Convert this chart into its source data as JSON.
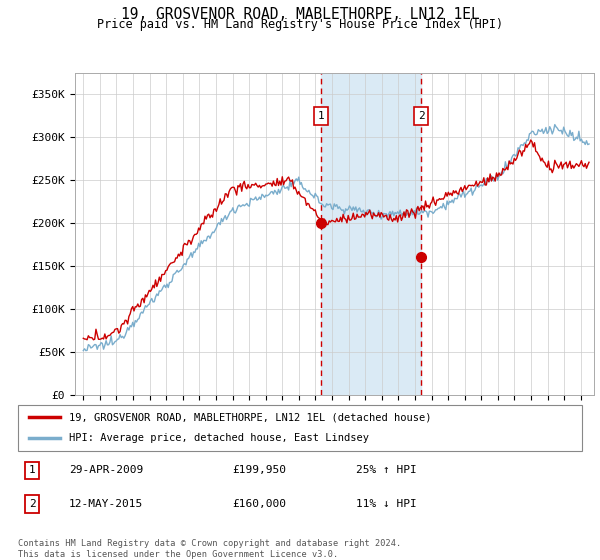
{
  "title": "19, GROSVENOR ROAD, MABLETHORPE, LN12 1EL",
  "subtitle": "Price paid vs. HM Land Registry's House Price Index (HPI)",
  "legend_line1": "19, GROSVENOR ROAD, MABLETHORPE, LN12 1EL (detached house)",
  "legend_line2": "HPI: Average price, detached house, East Lindsey",
  "footer": "Contains HM Land Registry data © Crown copyright and database right 2024.\nThis data is licensed under the Open Government Licence v3.0.",
  "transaction1_date": "29-APR-2009",
  "transaction1_price": "£199,950",
  "transaction1_hpi": "25% ↑ HPI",
  "transaction2_date": "12-MAY-2015",
  "transaction2_price": "£160,000",
  "transaction2_hpi": "11% ↓ HPI",
  "ylim": [
    0,
    375000
  ],
  "yticks": [
    0,
    50000,
    100000,
    150000,
    200000,
    250000,
    300000,
    350000
  ],
  "ytick_labels": [
    "£0",
    "£50K",
    "£100K",
    "£150K",
    "£200K",
    "£250K",
    "£300K",
    "£350K"
  ],
  "red_color": "#cc0000",
  "blue_color": "#7aadcc",
  "shaded_color": "#daeaf5",
  "marker1_x": 2009.33,
  "marker2_x": 2015.37,
  "marker1_y": 199950,
  "marker2_y": 160000,
  "xlim_left": 1994.5,
  "xlim_right": 2025.8
}
